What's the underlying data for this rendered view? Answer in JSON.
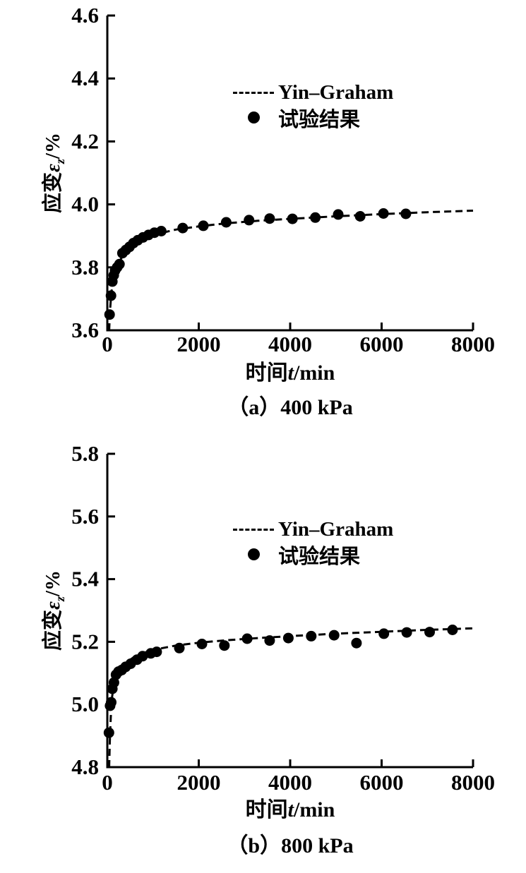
{
  "page": {
    "background": "#ffffff",
    "ink": "#000000"
  },
  "chart_data": [
    {
      "type": "line",
      "panel": "a",
      "caption": "（a）400 kPa",
      "xlabel": {
        "prefix": "时间",
        "symbol": "t",
        "unit": "/min"
      },
      "ylabel": {
        "prefix": "应变",
        "symbol": "ε",
        "subscript": "z",
        "unit": "/%"
      },
      "x": {
        "min": 0,
        "max": 8000,
        "ticks": [
          0,
          2000,
          4000,
          6000,
          8000
        ],
        "tick_labels": [
          "0",
          "2000",
          "4000",
          "6000",
          "8000"
        ]
      },
      "y": {
        "min": 3.6,
        "max": 4.6,
        "ticks": [
          3.6,
          3.8,
          4.0,
          4.2,
          4.4,
          4.6
        ],
        "tick_labels": [
          "3.6",
          "3.8",
          "4.0",
          "4.2",
          "4.4",
          "4.6"
        ]
      },
      "grid": false,
      "legend_position": "upper-center",
      "legend": [
        {
          "marker": "dashed-line",
          "label": "Yin–Graham"
        },
        {
          "marker": "filled-circle",
          "label": "试验结果"
        }
      ],
      "series": [
        {
          "name": "Yin–Graham",
          "style": "dashed-line",
          "points": [
            [
              40,
              3.6
            ],
            [
              60,
              3.665
            ],
            [
              90,
              3.72
            ],
            [
              130,
              3.765
            ],
            [
              180,
              3.795
            ],
            [
              250,
              3.815
            ],
            [
              350,
              3.84
            ],
            [
              480,
              3.862
            ],
            [
              650,
              3.878
            ],
            [
              880,
              3.895
            ],
            [
              1150,
              3.908
            ],
            [
              1500,
              3.92
            ],
            [
              2000,
              3.93
            ],
            [
              2600,
              3.94
            ],
            [
              3300,
              3.948
            ],
            [
              4100,
              3.955
            ],
            [
              5000,
              3.962
            ],
            [
              6000,
              3.969
            ],
            [
              7000,
              3.975
            ],
            [
              8000,
              3.98
            ]
          ]
        },
        {
          "name": "试验结果",
          "style": "scatter",
          "points": [
            [
              50,
              3.65
            ],
            [
              80,
              3.71
            ],
            [
              110,
              3.755
            ],
            [
              140,
              3.775
            ],
            [
              170,
              3.79
            ],
            [
              215,
              3.8
            ],
            [
              265,
              3.81
            ],
            [
              330,
              3.845
            ],
            [
              405,
              3.855
            ],
            [
              485,
              3.865
            ],
            [
              570,
              3.877
            ],
            [
              665,
              3.886
            ],
            [
              780,
              3.895
            ],
            [
              900,
              3.903
            ],
            [
              1030,
              3.91
            ],
            [
              1180,
              3.915
            ],
            [
              1650,
              3.925
            ],
            [
              2100,
              3.932
            ],
            [
              2600,
              3.943
            ],
            [
              3100,
              3.95
            ],
            [
              3550,
              3.955
            ],
            [
              4050,
              3.954
            ],
            [
              4550,
              3.958
            ],
            [
              5050,
              3.968
            ],
            [
              5530,
              3.962
            ],
            [
              6040,
              3.971
            ],
            [
              6530,
              3.97
            ]
          ]
        }
      ]
    },
    {
      "type": "line",
      "panel": "b",
      "caption": "（b）800 kPa",
      "xlabel": {
        "prefix": "时间",
        "symbol": "t",
        "unit": "/min"
      },
      "ylabel": {
        "prefix": "应变",
        "symbol": "ε",
        "subscript": "z",
        "unit": "/%"
      },
      "x": {
        "min": 0,
        "max": 8000,
        "ticks": [
          0,
          2000,
          4000,
          6000,
          8000
        ],
        "tick_labels": [
          "0",
          "2000",
          "4000",
          "6000",
          "8000"
        ]
      },
      "y": {
        "min": 4.8,
        "max": 5.8,
        "ticks": [
          4.8,
          5.0,
          5.2,
          5.4,
          5.6,
          5.8
        ],
        "tick_labels": [
          "4.8",
          "5.0",
          "5.2",
          "5.4",
          "5.6",
          "5.8"
        ]
      },
      "grid": false,
      "legend_position": "upper-center",
      "legend": [
        {
          "marker": "dashed-line",
          "label": "Yin–Graham"
        },
        {
          "marker": "filled-circle",
          "label": "试验结果"
        }
      ],
      "series": [
        {
          "name": "Yin–Graham",
          "style": "dashed-line",
          "points": [
            [
              40,
              4.8
            ],
            [
              55,
              4.885
            ],
            [
              75,
              4.96
            ],
            [
              105,
              5.025
            ],
            [
              150,
              5.07
            ],
            [
              210,
              5.1
            ],
            [
              300,
              5.118
            ],
            [
              420,
              5.135
            ],
            [
              580,
              5.151
            ],
            [
              800,
              5.165
            ],
            [
              1100,
              5.177
            ],
            [
              1500,
              5.188
            ],
            [
              2000,
              5.197
            ],
            [
              2600,
              5.205
            ],
            [
              3300,
              5.212
            ],
            [
              4100,
              5.219
            ],
            [
              5000,
              5.226
            ],
            [
              6000,
              5.232
            ],
            [
              7000,
              5.238
            ],
            [
              8000,
              5.243
            ]
          ]
        },
        {
          "name": "试验结果",
          "style": "scatter",
          "points": [
            [
              35,
              4.91
            ],
            [
              60,
              4.996
            ],
            [
              85,
              5.007
            ],
            [
              110,
              5.05
            ],
            [
              145,
              5.07
            ],
            [
              190,
              5.095
            ],
            [
              245,
              5.105
            ],
            [
              315,
              5.11
            ],
            [
              400,
              5.12
            ],
            [
              510,
              5.13
            ],
            [
              650,
              5.143
            ],
            [
              770,
              5.154
            ],
            [
              950,
              5.163
            ],
            [
              1080,
              5.168
            ],
            [
              1575,
              5.18
            ],
            [
              2070,
              5.193
            ],
            [
              2560,
              5.188
            ],
            [
              3060,
              5.21
            ],
            [
              3550,
              5.204
            ],
            [
              3960,
              5.212
            ],
            [
              4460,
              5.218
            ],
            [
              4960,
              5.221
            ],
            [
              5450,
              5.196
            ],
            [
              6050,
              5.226
            ],
            [
              6550,
              5.23
            ],
            [
              7050,
              5.231
            ],
            [
              7550,
              5.238
            ]
          ]
        }
      ]
    }
  ]
}
